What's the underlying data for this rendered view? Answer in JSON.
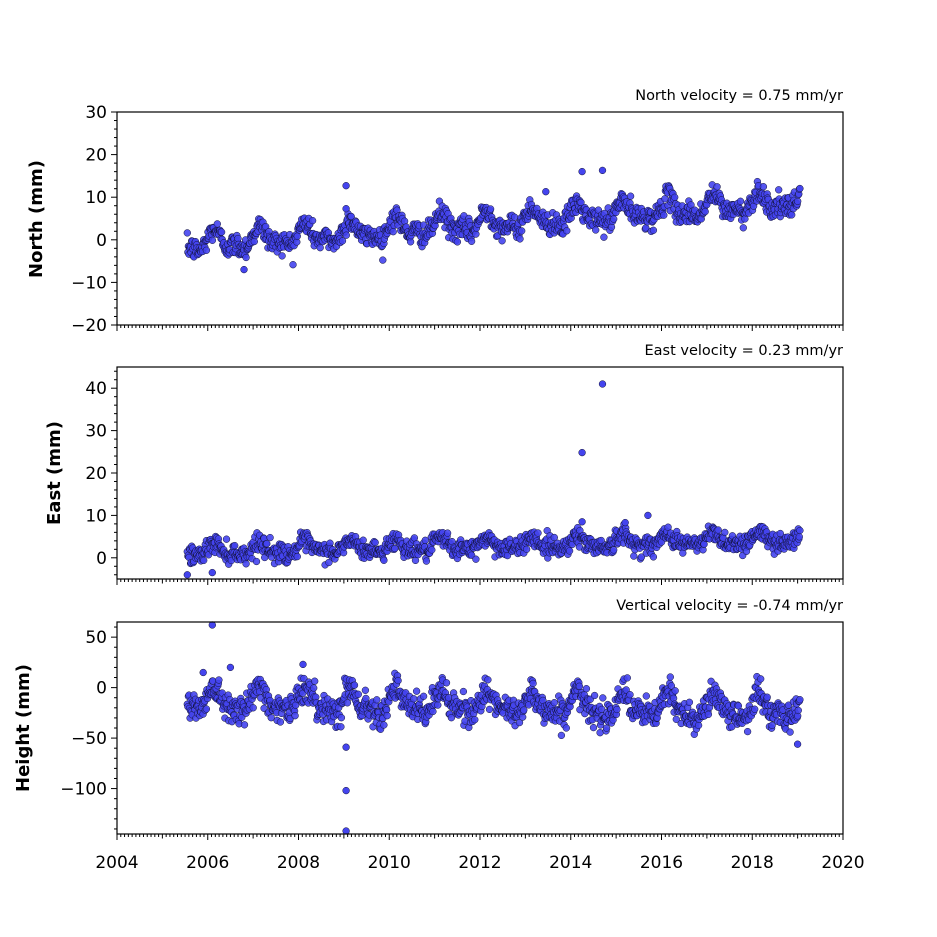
{
  "chart_data": [
    {
      "type": "scatter",
      "id": "north",
      "title": "North velocity = 0.75 mm/yr",
      "ylabel": "North (mm)",
      "xlim": [
        2004,
        2020
      ],
      "ylim": [
        -20,
        30
      ],
      "yticks": [
        -20,
        -10,
        0,
        10,
        20,
        30
      ],
      "ytick_labels": [
        "−20",
        "−10",
        "0",
        "10",
        "20",
        "30"
      ],
      "velocity_mm_per_yr": 0.75,
      "time_range": [
        2005.55,
        2019.05
      ],
      "trend_start": -1.0,
      "seasonal_amplitude": 2.0,
      "noise": 1.3,
      "outliers": [
        [
          2006.8,
          -7
        ],
        [
          2009.05,
          12.7
        ],
        [
          2009.05,
          7.3
        ],
        [
          2014.25,
          16
        ],
        [
          2014.7,
          16.3
        ],
        [
          2013.45,
          11.3
        ]
      ],
      "marker_color": "#4444ee"
    },
    {
      "type": "scatter",
      "id": "east",
      "title": "East velocity = 0.23 mm/yr",
      "ylabel": "East (mm)",
      "xlim": [
        2004,
        2020
      ],
      "ylim": [
        -5,
        45
      ],
      "yticks": [
        0,
        10,
        20,
        30,
        40
      ],
      "ytick_labels": [
        "0",
        "10",
        "20",
        "30",
        "40"
      ],
      "velocity_mm_per_yr": 0.23,
      "time_range": [
        2005.55,
        2019.05
      ],
      "trend_start": 1.5,
      "seasonal_amplitude": 1.2,
      "noise": 1.1,
      "outliers": [
        [
          2014.25,
          24.8
        ],
        [
          2014.7,
          41
        ],
        [
          2005.55,
          -4
        ],
        [
          2006.1,
          -3.5
        ],
        [
          2015.7,
          10
        ],
        [
          2015.2,
          8.3
        ],
        [
          2014.25,
          8.5
        ]
      ],
      "marker_color": "#4444ee"
    },
    {
      "type": "scatter",
      "id": "height",
      "title": "Vertical velocity = -0.74 mm/yr",
      "ylabel": "Height (mm)",
      "xlim": [
        2004,
        2020
      ],
      "ylim": [
        -145,
        65
      ],
      "yticks": [
        -100,
        -50,
        0,
        50
      ],
      "ytick_labels": [
        "−100",
        "−50",
        "0",
        "50"
      ],
      "velocity_mm_per_yr": -0.74,
      "time_range": [
        2005.55,
        2019.05
      ],
      "trend_start": -12,
      "seasonal_amplitude": 10,
      "noise": 7,
      "outliers": [
        [
          2006.1,
          62
        ],
        [
          2008.1,
          23
        ],
        [
          2009.05,
          -59
        ],
        [
          2009.05,
          -102
        ],
        [
          2009.05,
          -142
        ],
        [
          2005.9,
          15
        ],
        [
          2006.5,
          20
        ],
        [
          2019.0,
          -56
        ]
      ],
      "marker_color": "#4444ee"
    }
  ],
  "xticks": [
    2004,
    2006,
    2008,
    2010,
    2012,
    2014,
    2016,
    2018,
    2020
  ]
}
